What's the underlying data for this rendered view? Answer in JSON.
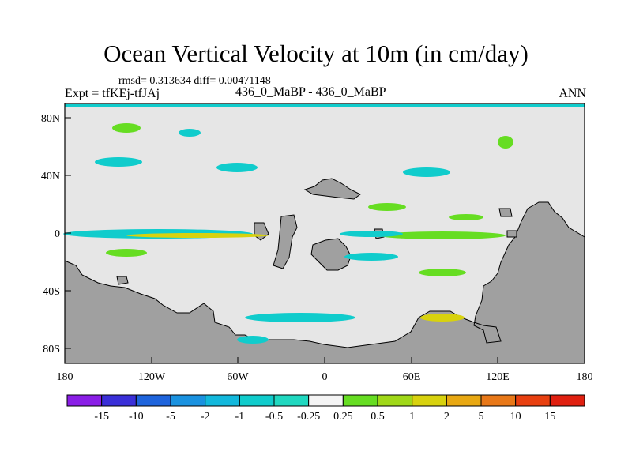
{
  "header": {
    "title": "Ocean Vertical Velocity at 10m (in cm/day)",
    "stats": "rmsd= 0.313634 diff= 0.00471148",
    "experiment": "Expt = tfKEj-tfJAj",
    "difference": "436_0_MaBP - 436_0_MaBP",
    "season": "ANN"
  },
  "axes": {
    "x_ticks": [
      "180",
      "120W",
      "60W",
      "0",
      "60E",
      "120E",
      "180"
    ],
    "y_ticks": [
      "80N",
      "40N",
      "0",
      "40S",
      "80S"
    ]
  },
  "colorbar": {
    "labels": [
      "-15",
      "-10",
      "-5",
      "-2",
      "-1",
      "-0.5",
      "-0.25",
      "0.25",
      "0.5",
      "1",
      "2",
      "5",
      "10",
      "15"
    ],
    "colors": [
      "#8a1ee6",
      "#3a2fd8",
      "#1e64dc",
      "#1a92e0",
      "#12b8dc",
      "#10cccc",
      "#20d8c0",
      "#f4f4f4",
      "#66dd22",
      "#a0d818",
      "#d8d20e",
      "#e8a812",
      "#e87818",
      "#e84010",
      "#e02010"
    ]
  },
  "map": {
    "ocean_color": "#e6e6e6",
    "land_color": "#a0a0a0"
  }
}
